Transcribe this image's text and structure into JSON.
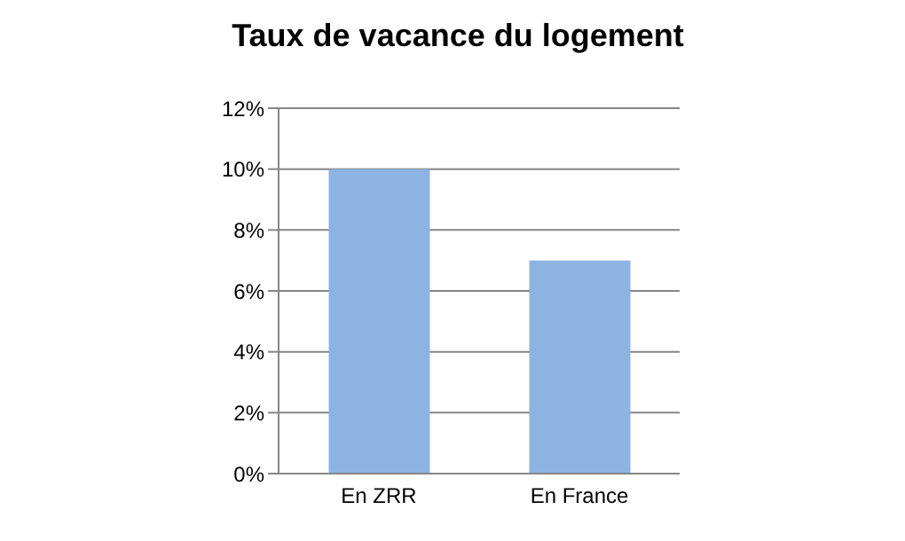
{
  "chart_data": {
    "type": "bar",
    "title": "Taux de vacance du logement",
    "categories": [
      "En ZRR",
      "En France"
    ],
    "values": [
      10,
      7
    ],
    "color": "#8db3e2",
    "ylim": [
      0,
      12
    ],
    "yticks": [
      {
        "value": 0,
        "label": "0%"
      },
      {
        "value": 2,
        "label": "2%"
      },
      {
        "value": 4,
        "label": "4%"
      },
      {
        "value": 6,
        "label": "6%"
      },
      {
        "value": 8,
        "label": "8%"
      },
      {
        "value": 10,
        "label": "10%"
      },
      {
        "value": 12,
        "label": "12%"
      }
    ],
    "grid": "y"
  }
}
